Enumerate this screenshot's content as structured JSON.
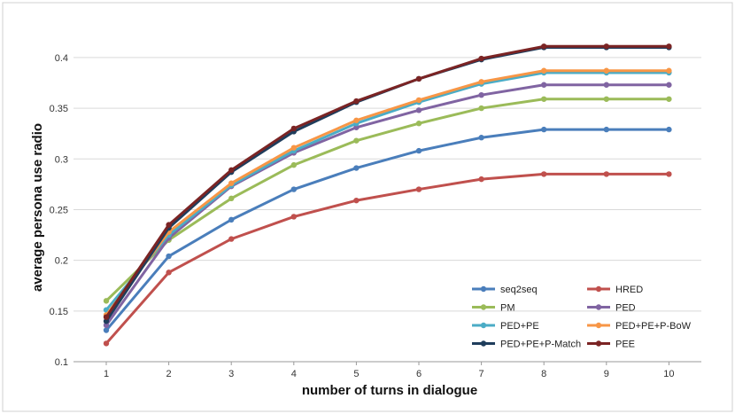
{
  "chart_data": {
    "type": "line",
    "xlabel": "number of turns in dialogue",
    "ylabel": "average persona use radio",
    "categories": [
      "1",
      "2",
      "3",
      "4",
      "5",
      "6",
      "7",
      "8",
      "9",
      "10"
    ],
    "ylim": [
      0.1,
      0.42
    ],
    "yticks": [
      "0.1",
      "0.15",
      "0.2",
      "0.25",
      "0.3",
      "0.35",
      "0.4"
    ],
    "grid": "horizontal",
    "legend_position": "bottom-right",
    "series": [
      {
        "name": "seq2seq",
        "color": "#4a7ebb",
        "values": [
          0.131,
          0.204,
          0.24,
          0.27,
          0.291,
          0.308,
          0.321,
          0.329,
          0.329,
          0.329
        ]
      },
      {
        "name": "HRED",
        "color": "#c0504d",
        "values": [
          0.118,
          0.188,
          0.221,
          0.243,
          0.259,
          0.27,
          0.28,
          0.285,
          0.285,
          0.285
        ]
      },
      {
        "name": "PM",
        "color": "#9bbb59",
        "values": [
          0.16,
          0.22,
          0.261,
          0.294,
          0.318,
          0.335,
          0.35,
          0.359,
          0.359,
          0.359
        ]
      },
      {
        "name": "PED",
        "color": "#8064a2",
        "values": [
          0.136,
          0.222,
          0.273,
          0.306,
          0.331,
          0.348,
          0.363,
          0.373,
          0.373,
          0.373
        ]
      },
      {
        "name": "PED+PE",
        "color": "#4bacc6",
        "values": [
          0.151,
          0.225,
          0.274,
          0.308,
          0.335,
          0.356,
          0.374,
          0.385,
          0.385,
          0.385
        ]
      },
      {
        "name": "PED+PE+P-BoW",
        "color": "#f79646",
        "values": [
          0.146,
          0.228,
          0.276,
          0.311,
          0.338,
          0.358,
          0.376,
          0.387,
          0.387,
          0.387
        ]
      },
      {
        "name": "PED+PE+P-Match",
        "color": "#1f3d5c",
        "values": [
          0.14,
          0.232,
          0.287,
          0.327,
          0.356,
          0.379,
          0.398,
          0.41,
          0.41,
          0.41
        ]
      },
      {
        "name": "PEE",
        "color": "#7b2424",
        "values": [
          0.144,
          0.235,
          0.289,
          0.33,
          0.357,
          0.379,
          0.399,
          0.411,
          0.411,
          0.411
        ]
      }
    ]
  }
}
